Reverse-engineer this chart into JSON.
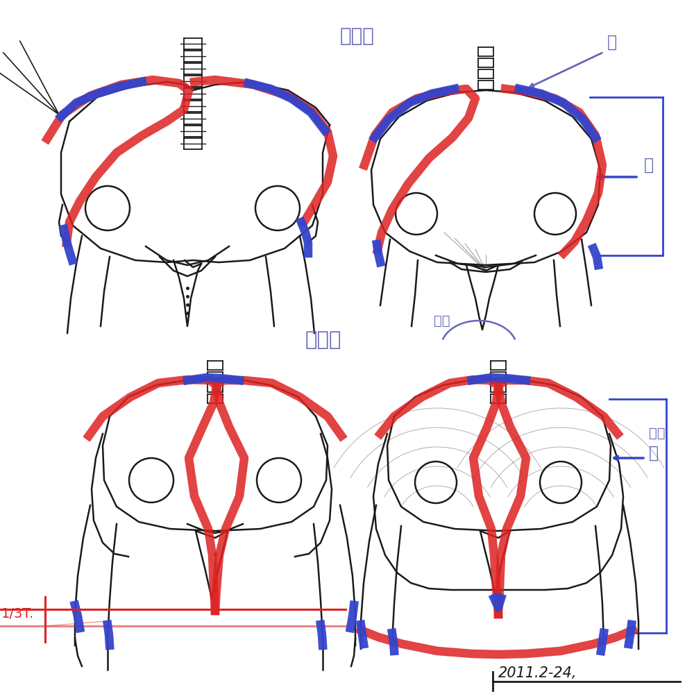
{
  "bg_color": "#ffffff",
  "title_color": "#6666bb",
  "red_color": "#dd2222",
  "blue_color": "#3344cc",
  "black_color": "#1a1a1a",
  "figsize": [
    10,
    10
  ],
  "dpi": 100,
  "annotations": {
    "top_label": "臀中肌",
    "bottom_label": "臀大肌",
    "qi": "起",
    "zhi_top": "止",
    "zhi_bottom": "止",
    "zhi2": "支属",
    "san_fen_yi": "1/3T.",
    "date": "2011.2-24,"
  }
}
